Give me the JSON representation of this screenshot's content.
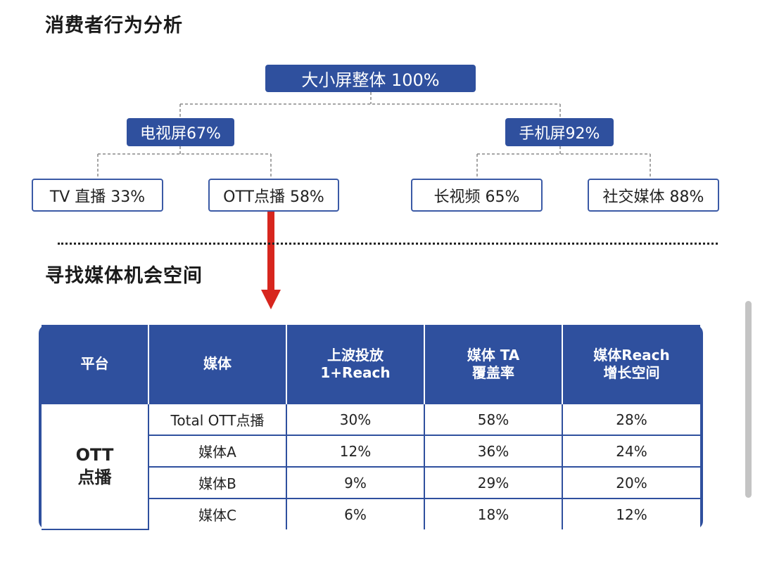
{
  "section1_title": "消费者行为分析",
  "section2_title": "寻找媒体机会空间",
  "tree": {
    "root": "大小屏整体 100%",
    "tv_screen": "电视屏67%",
    "mobile_screen": "手机屏92%",
    "tv_live": "TV 直播 33%",
    "ott_vod": "OTT点播 58%",
    "long_video": "长视频 65%",
    "social_media": "社交媒体 88%"
  },
  "colors": {
    "accent": "#2f509e",
    "arrow": "#d7261e"
  },
  "table": {
    "headers": [
      "平台",
      "媒体",
      "上波投放\n1+Reach",
      "媒体 TA\n覆盖率",
      "媒体Reach\n增长空间"
    ],
    "platform": "OTT\n点播",
    "rows": [
      [
        "Total OTT点播",
        "30%",
        "58%",
        "28%"
      ],
      [
        "媒体A",
        "12%",
        "36%",
        "24%"
      ],
      [
        "媒体B",
        "9%",
        "29%",
        "20%"
      ],
      [
        "媒体C",
        "6%",
        "18%",
        "12%"
      ]
    ]
  }
}
